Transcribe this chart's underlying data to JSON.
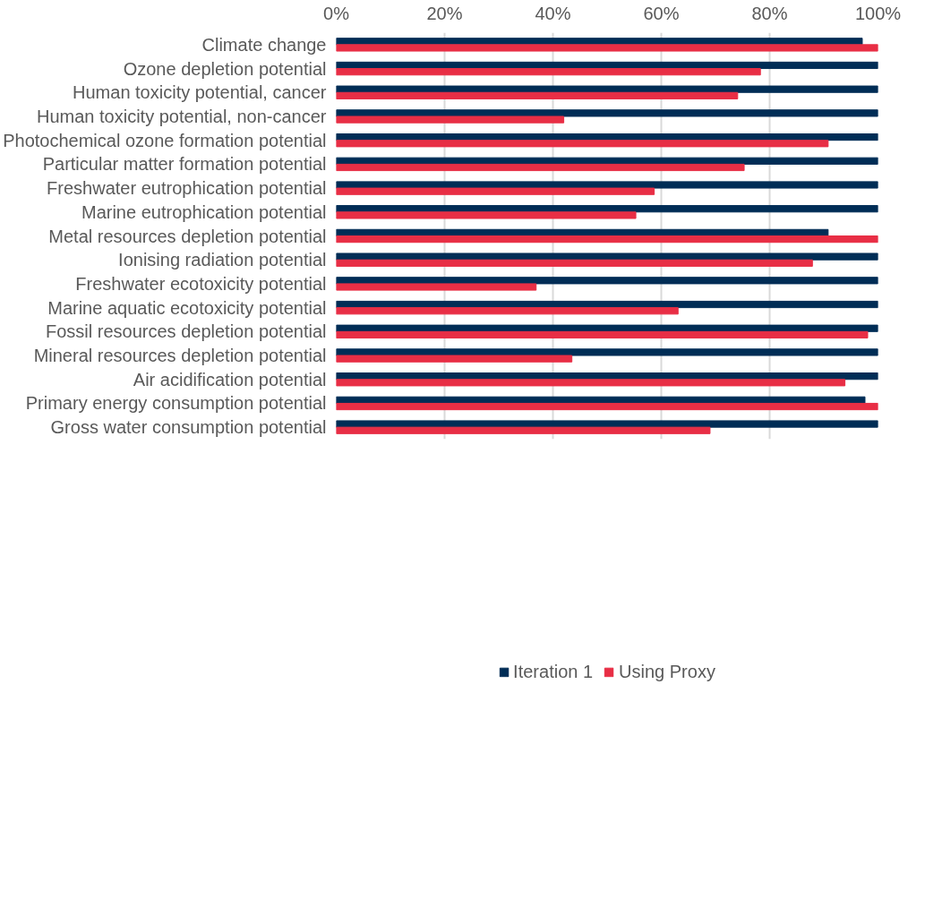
{
  "chart_data": {
    "type": "bar",
    "orientation": "horizontal",
    "categories": [
      "Climate change",
      "Ozone depletion potential",
      "Human toxicity potential, cancer",
      "Human toxicity potential, non-cancer",
      "Photochemical ozone formation potential",
      "Particular matter formation potential",
      "Freshwater eutrophication potential",
      "Marine eutrophication potential",
      "Metal resources depletion potential",
      "Ionising radiation potential",
      "Freshwater ecotoxicity potential",
      "Marine aquatic ecotoxicity potential",
      "Fossil resources depletion potential",
      "Mineral resources depletion potential",
      "Air acidification potential",
      "Primary energy consumption potential",
      "Gross water consumption potential"
    ],
    "series": [
      {
        "name": "Iteration 1",
        "color": "#002d56",
        "values": [
          97.1,
          100,
          100,
          100,
          100,
          100,
          100,
          100,
          90.8,
          100,
          100,
          100,
          100,
          100,
          100,
          97.6,
          100
        ]
      },
      {
        "name": "Using Proxy",
        "color": "#e82e45",
        "values": [
          100,
          78.3,
          74.1,
          42,
          90.8,
          75.3,
          58.7,
          55.3,
          100,
          87.9,
          36.9,
          63.1,
          98.1,
          43.5,
          93.9,
          100,
          69
        ]
      }
    ],
    "xlim": [
      0,
      100
    ],
    "xticks": [
      {
        "value": 0,
        "label": "0%"
      },
      {
        "value": 20,
        "label": "20%"
      },
      {
        "value": 40,
        "label": "40%"
      },
      {
        "value": 60,
        "label": "60%"
      },
      {
        "value": 80,
        "label": "80%"
      },
      {
        "value": 100,
        "label": "100%"
      }
    ],
    "grid": "x",
    "legend": "bottom"
  }
}
